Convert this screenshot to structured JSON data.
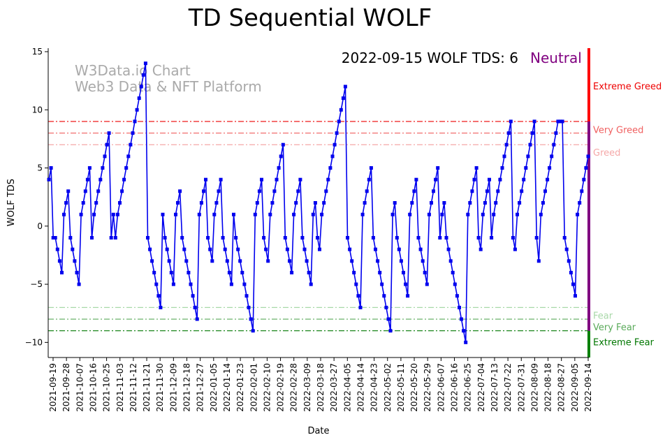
{
  "chart_data": {
    "type": "line",
    "title": "TD Sequential WOLF",
    "xlabel": "Date",
    "ylabel": "WOLF TDS",
    "ylim": [
      -11.3,
      15.3
    ],
    "x_range": [
      "2021-09-19",
      "2022-09-14"
    ],
    "yticks": [
      -10,
      -5,
      0,
      5,
      10,
      15
    ],
    "ytick_labels": [
      "−10",
      "−5",
      "0",
      "5",
      "10",
      "15"
    ],
    "xtick_labels": [
      "2021-09-19",
      "2021-09-28",
      "2021-10-07",
      "2021-10-16",
      "2021-10-25",
      "2021-11-03",
      "2021-11-12",
      "2021-11-21",
      "2021-11-30",
      "2021-12-09",
      "2021-12-18",
      "2021-12-27",
      "2022-01-05",
      "2022-01-14",
      "2022-01-23",
      "2022-02-01",
      "2022-02-10",
      "2022-02-19",
      "2022-02-28",
      "2022-03-09",
      "2022-03-18",
      "2022-03-27",
      "2022-04-05",
      "2022-04-14",
      "2022-04-23",
      "2022-05-02",
      "2022-05-11",
      "2022-05-20",
      "2022-05-29",
      "2022-06-07",
      "2022-06-16",
      "2022-06-25",
      "2022-07-04",
      "2022-07-13",
      "2022-07-22",
      "2022-07-31",
      "2022-08-09",
      "2022-08-18",
      "2022-08-27",
      "2022-09-05",
      "2022-09-14"
    ],
    "annotation": "2022-09-15 WOLF TDS: 6",
    "status": "Neutral",
    "watermark_line1": "W3Data.io Chart",
    "watermark_line2": "Web3 Data & NFT Platform",
    "series": [
      {
        "name": "WOLF TDS",
        "color": "#0000ee",
        "values": [
          4,
          5,
          -1,
          -1,
          -2,
          -3,
          -4,
          1,
          2,
          3,
          -1,
          -2,
          -3,
          -4,
          -5,
          1,
          2,
          3,
          4,
          5,
          -1,
          1,
          2,
          3,
          4,
          5,
          6,
          7,
          8,
          -1,
          1,
          -1,
          1,
          2,
          3,
          4,
          5,
          6,
          7,
          8,
          9,
          10,
          11,
          12,
          13,
          14,
          -1,
          -2,
          -3,
          -4,
          -5,
          -6,
          -7,
          1,
          -1,
          -2,
          -3,
          -4,
          -5,
          1,
          2,
          3,
          -1,
          -2,
          -3,
          -4,
          -5,
          -6,
          -7,
          -8,
          1,
          2,
          3,
          4,
          -1,
          -2,
          -3,
          1,
          2,
          3,
          4,
          -1,
          -2,
          -3,
          -4,
          -5,
          1,
          -1,
          -2,
          -3,
          -4,
          -5,
          -6,
          -7,
          -8,
          -9,
          1,
          2,
          3,
          4,
          -1,
          -2,
          -3,
          1,
          2,
          3,
          4,
          5,
          6,
          7,
          -1,
          -2,
          -3,
          -4,
          1,
          2,
          3,
          4,
          -1,
          -2,
          -3,
          -4,
          -5,
          1,
          2,
          -1,
          -2,
          1,
          2,
          3,
          4,
          5,
          6,
          7,
          8,
          9,
          10,
          11,
          12,
          -1,
          -2,
          -3,
          -4,
          -5,
          -6,
          -7,
          1,
          2,
          3,
          4,
          5,
          -1,
          -2,
          -3,
          -4,
          -5,
          -6,
          -7,
          -8,
          -9,
          1,
          2,
          -1,
          -2,
          -3,
          -4,
          -5,
          -6,
          1,
          2,
          3,
          4,
          -1,
          -2,
          -3,
          -4,
          -5,
          1,
          2,
          3,
          4,
          5,
          -1,
          1,
          2,
          -1,
          -2,
          -3,
          -4,
          -5,
          -6,
          -7,
          -8,
          -9,
          -10,
          1,
          2,
          3,
          4,
          5,
          -1,
          -2,
          1,
          2,
          3,
          4,
          -1,
          1,
          2,
          3,
          4,
          5,
          6,
          7,
          8,
          9,
          -1,
          -2,
          1,
          2,
          3,
          4,
          5,
          6,
          7,
          8,
          9,
          -1,
          -3,
          1,
          2,
          3,
          4,
          5,
          6,
          7,
          8,
          9,
          9,
          9,
          -1,
          -2,
          -3,
          -4,
          -5,
          -6,
          1,
          2,
          3,
          4,
          5,
          6
        ]
      }
    ],
    "thresholds": [
      {
        "name": "Extreme Greed",
        "value": 9,
        "color": "#ee0000"
      },
      {
        "name": "Very Greed",
        "value": 8,
        "color": "#f06060"
      },
      {
        "name": "Greed",
        "value": 7,
        "color": "#f5a8a8"
      },
      {
        "name": "Fear",
        "value": -7,
        "color": "#a8d8a8"
      },
      {
        "name": "Very Fear",
        "value": -8,
        "color": "#5aaa5a"
      },
      {
        "name": "Extreme Fear",
        "value": -9,
        "color": "#007700"
      }
    ],
    "zone_bars": [
      {
        "name": "greed-zone",
        "from": 9,
        "to": 15.3,
        "color": "#ff0000"
      },
      {
        "name": "neutral-zone",
        "from": -9,
        "to": 9,
        "color": "#800080"
      },
      {
        "name": "fear-zone",
        "from": -11.3,
        "to": -9,
        "color": "#008000"
      }
    ],
    "colors": {
      "neutral_text": "#800080",
      "watermark": "#aaaaaa",
      "line": "#0000ee"
    }
  }
}
